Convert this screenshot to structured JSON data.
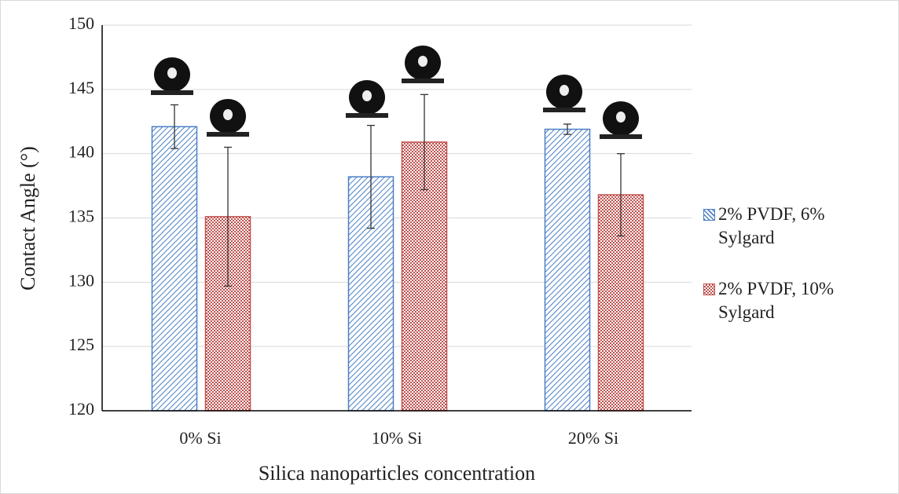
{
  "chart_data": {
    "type": "bar",
    "x_label": "Silica nanoparticles concentration",
    "y_label": "Contact Angle (°)",
    "categories": [
      "0% Si",
      "10% Si",
      "20% Si"
    ],
    "series": [
      {
        "name": "2% PVDF, 6% Sylgard",
        "color": "#4a7fc4",
        "values": [
          142.1,
          138.2,
          141.9
        ],
        "errors": [
          1.7,
          4.0,
          0.4
        ]
      },
      {
        "name": "2% PVDF, 10% Sylgard",
        "color": "#c0504d",
        "values": [
          135.1,
          140.9,
          136.8
        ],
        "errors": [
          5.4,
          3.7,
          3.2
        ]
      }
    ],
    "ylim": [
      120,
      150
    ],
    "yticks": [
      120,
      125,
      130,
      135,
      140,
      145,
      150
    ],
    "grid": true,
    "legend": "right"
  }
}
